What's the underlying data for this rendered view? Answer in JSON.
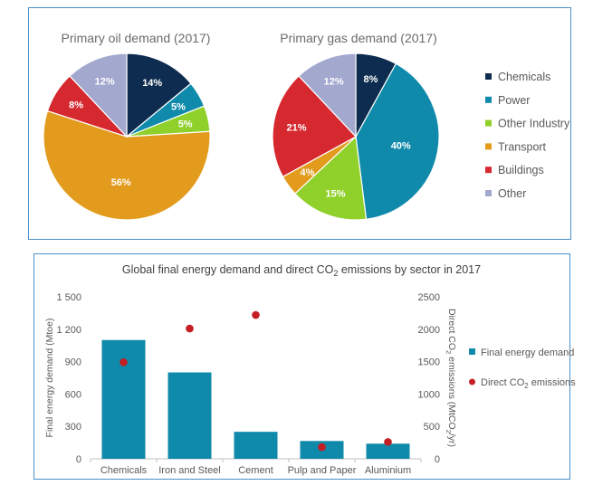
{
  "chart_data": [
    {
      "type": "pie",
      "title": "Primary oil demand (2017)",
      "categories": [
        "Chemicals",
        "Power",
        "Other Industry",
        "Transport",
        "Buildings",
        "Other"
      ],
      "values": [
        14,
        5,
        5,
        56,
        8,
        12
      ],
      "labels": [
        "14%",
        "5%",
        "5%",
        "56%",
        "8%",
        "12%"
      ],
      "colors": [
        "#0e2c4f",
        "#108aaa",
        "#8fd02a",
        "#e29b1c",
        "#d5282f",
        "#a3a8cf"
      ]
    },
    {
      "type": "pie",
      "title": "Primary gas demand (2017)",
      "categories": [
        "Chemicals",
        "Power",
        "Other Industry",
        "Transport",
        "Buildings",
        "Other"
      ],
      "values": [
        8,
        40,
        15,
        4,
        21,
        12
      ],
      "labels": [
        "8%",
        "40%",
        "15%",
        "4%",
        "21%",
        "12%"
      ],
      "colors": [
        "#0e2c4f",
        "#108aaa",
        "#8fd02a",
        "#e29b1c",
        "#d5282f",
        "#a3a8cf"
      ]
    },
    {
      "type": "bar",
      "title_parts": [
        "Global final energy demand and direct CO",
        "2",
        " emissions by sector in 2017"
      ],
      "categories": [
        "Chemicals",
        "Iron and Steel",
        "Cement",
        "Pulp and Paper",
        "Aluminium"
      ],
      "series": [
        {
          "name": "Final energy demand",
          "type": "bar",
          "axis": "left",
          "values": [
            1100,
            800,
            250,
            165,
            140
          ],
          "color": "#108aaa"
        },
        {
          "name_parts": [
            "Direct CO",
            "2",
            " emissions"
          ],
          "type": "scatter",
          "axis": "right",
          "values": [
            1490,
            2010,
            2220,
            180,
            260
          ],
          "color": "#c41e24"
        }
      ],
      "ylabel_left": "Final energy demand (Mtoe)",
      "ylabel_right_parts": [
        "Direct CO",
        "2",
        " emissions (MtCO",
        "2",
        "/yr)"
      ],
      "ylim_left": [
        0,
        1500
      ],
      "ylim_right": [
        0,
        2500
      ],
      "yticks_left": [
        "0",
        "300",
        "600",
        "900",
        "1 200",
        "1 500"
      ],
      "yticks_right": [
        "0",
        "500",
        "1000",
        "1500",
        "2000",
        "2500"
      ],
      "legend_position": "right"
    }
  ]
}
